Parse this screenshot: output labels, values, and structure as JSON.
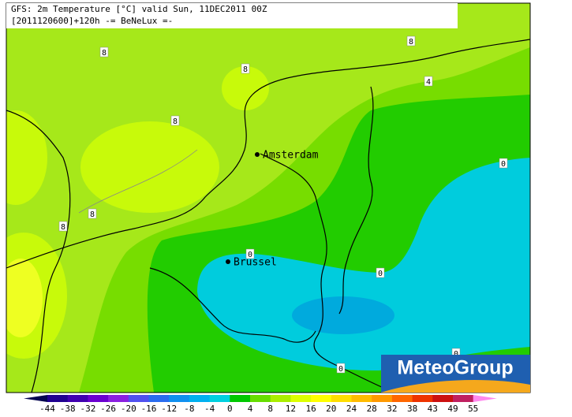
{
  "header": {
    "line1": "GFS: 2m Temperature [°C] valid Sun, 11DEC2011 00Z",
    "line2": "[2011120600]+120h -= BeNeLux =-"
  },
  "cities": [
    "Amsterdam",
    "Brussel"
  ],
  "contour_labels": [
    8,
    8,
    4,
    8,
    8,
    8,
    8,
    0,
    0,
    0,
    0,
    0
  ],
  "logo": "MeteoGroup",
  "colorbar": {
    "ticks": [
      -44,
      -38,
      -32,
      -26,
      -20,
      -16,
      -12,
      -8,
      -4,
      0,
      4,
      8,
      12,
      16,
      20,
      24,
      28,
      32,
      38,
      43,
      49,
      55
    ]
  }
}
